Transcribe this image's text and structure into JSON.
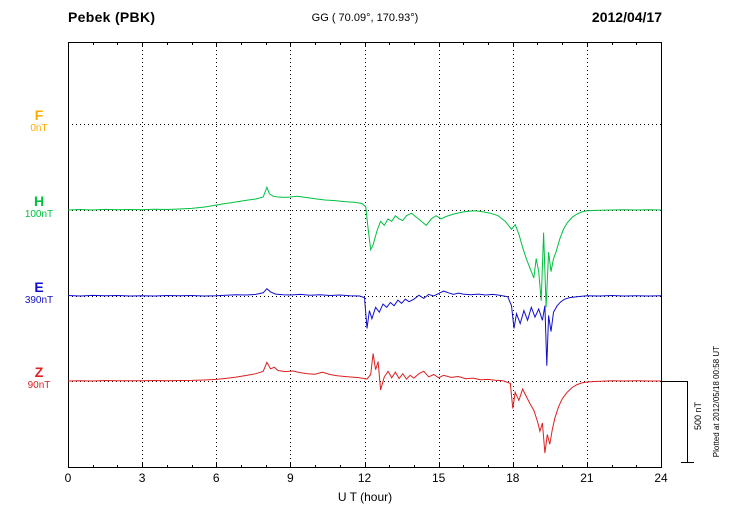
{
  "header": {
    "station": "Pebek (PBK)",
    "coords": "GG ( 70.09°, 170.93°)",
    "date": "2012/04/17"
  },
  "x_axis": {
    "label": "U T (hour)"
  },
  "scale_bar": {
    "label": "500 nT"
  },
  "plotted_note": "Plotted at 2012/05/18 00:58 UT",
  "chart_data": {
    "type": "line",
    "title": "Pebek (PBK) magnetogram",
    "xlabel": "U T (hour)",
    "x_range": [
      0,
      24
    ],
    "x_ticks": [
      0,
      3,
      6,
      9,
      12,
      15,
      18,
      21,
      24
    ],
    "y_unit": "nT",
    "scale_bar_nT": 500,
    "grid": "dotted",
    "series": [
      {
        "name": "F",
        "baseline_label": "0nT",
        "color": "#FFAA00",
        "points": []
      },
      {
        "name": "H",
        "baseline_label": "100nT",
        "color": "#00C040",
        "points": [
          [
            0,
            0
          ],
          [
            0.5,
            3
          ],
          [
            1,
            0
          ],
          [
            1.5,
            4
          ],
          [
            2,
            1
          ],
          [
            2.5,
            3
          ],
          [
            3,
            2
          ],
          [
            3.5,
            5
          ],
          [
            4,
            3
          ],
          [
            4.5,
            6
          ],
          [
            5,
            10
          ],
          [
            5.5,
            18
          ],
          [
            6,
            30
          ],
          [
            6.3,
            38
          ],
          [
            6.6,
            45
          ],
          [
            7,
            55
          ],
          [
            7.3,
            62
          ],
          [
            7.6,
            68
          ],
          [
            7.9,
            80
          ],
          [
            8.05,
            140
          ],
          [
            8.15,
            100
          ],
          [
            8.3,
            85
          ],
          [
            8.5,
            80
          ],
          [
            8.8,
            78
          ],
          [
            9,
            80
          ],
          [
            9.3,
            85
          ],
          [
            9.6,
            78
          ],
          [
            10,
            70
          ],
          [
            10.4,
            62
          ],
          [
            10.8,
            58
          ],
          [
            11.2,
            52
          ],
          [
            11.6,
            48
          ],
          [
            11.9,
            40
          ],
          [
            12.05,
            20
          ],
          [
            12.15,
            -120
          ],
          [
            12.25,
            -245
          ],
          [
            12.35,
            -215
          ],
          [
            12.5,
            -130
          ],
          [
            12.65,
            -70
          ],
          [
            12.8,
            -95
          ],
          [
            12.95,
            -55
          ],
          [
            13.1,
            -70
          ],
          [
            13.25,
            -35
          ],
          [
            13.4,
            -55
          ],
          [
            13.55,
            -65
          ],
          [
            13.7,
            -35
          ],
          [
            13.9,
            -20
          ],
          [
            14.1,
            -45
          ],
          [
            14.3,
            -70
          ],
          [
            14.5,
            -95
          ],
          [
            14.7,
            -55
          ],
          [
            14.9,
            -35
          ],
          [
            15.1,
            -55
          ],
          [
            15.3,
            -40
          ],
          [
            15.6,
            -25
          ],
          [
            15.9,
            -15
          ],
          [
            16.2,
            -8
          ],
          [
            16.5,
            -5
          ],
          [
            16.8,
            -12
          ],
          [
            17.1,
            -20
          ],
          [
            17.4,
            -35
          ],
          [
            17.7,
            -70
          ],
          [
            17.95,
            -120
          ],
          [
            18.1,
            -90
          ],
          [
            18.25,
            -150
          ],
          [
            18.4,
            -230
          ],
          [
            18.55,
            -300
          ],
          [
            18.7,
            -360
          ],
          [
            18.85,
            -420
          ],
          [
            18.95,
            -300
          ],
          [
            19.05,
            -380
          ],
          [
            19.15,
            -560
          ],
          [
            19.25,
            -140
          ],
          [
            19.35,
            -600
          ],
          [
            19.45,
            -260
          ],
          [
            19.55,
            -380
          ],
          [
            19.65,
            -300
          ],
          [
            19.75,
            -260
          ],
          [
            19.9,
            -180
          ],
          [
            20.05,
            -120
          ],
          [
            20.2,
            -80
          ],
          [
            20.4,
            -45
          ],
          [
            20.6,
            -25
          ],
          [
            20.8,
            -12
          ],
          [
            21,
            -5
          ],
          [
            21.5,
            -2
          ],
          [
            22,
            0
          ],
          [
            22.5,
            2
          ],
          [
            23,
            0
          ],
          [
            23.5,
            2
          ],
          [
            24,
            0
          ]
        ]
      },
      {
        "name": "E",
        "baseline_label": "390nT",
        "color": "#1010CC",
        "points": [
          [
            0,
            3
          ],
          [
            0.5,
            0
          ],
          [
            1,
            4
          ],
          [
            1.5,
            1
          ],
          [
            2,
            3
          ],
          [
            2.5,
            0
          ],
          [
            3,
            2
          ],
          [
            3.5,
            0
          ],
          [
            4,
            3
          ],
          [
            4.5,
            1
          ],
          [
            5,
            3
          ],
          [
            5.5,
            0
          ],
          [
            6,
            2
          ],
          [
            6.4,
            5
          ],
          [
            6.8,
            8
          ],
          [
            7.2,
            6
          ],
          [
            7.6,
            10
          ],
          [
            7.9,
            20
          ],
          [
            8.05,
            45
          ],
          [
            8.2,
            25
          ],
          [
            8.4,
            12
          ],
          [
            8.7,
            8
          ],
          [
            9,
            6
          ],
          [
            9.4,
            10
          ],
          [
            9.8,
            5
          ],
          [
            10.2,
            8
          ],
          [
            10.6,
            3
          ],
          [
            11,
            6
          ],
          [
            11.4,
            2
          ],
          [
            11.8,
            0
          ],
          [
            12,
            -10
          ],
          [
            12.1,
            -200
          ],
          [
            12.2,
            -90
          ],
          [
            12.3,
            -140
          ],
          [
            12.45,
            -70
          ],
          [
            12.6,
            -100
          ],
          [
            12.75,
            -50
          ],
          [
            12.9,
            -70
          ],
          [
            13.05,
            -40
          ],
          [
            13.2,
            -60
          ],
          [
            13.35,
            -25
          ],
          [
            13.5,
            -45
          ],
          [
            13.65,
            -20
          ],
          [
            13.8,
            -35
          ],
          [
            14,
            -20
          ],
          [
            14.2,
            5
          ],
          [
            14.4,
            -15
          ],
          [
            14.6,
            10
          ],
          [
            14.8,
            0
          ],
          [
            15,
            15
          ],
          [
            15.2,
            30
          ],
          [
            15.4,
            20
          ],
          [
            15.6,
            10
          ],
          [
            15.8,
            18
          ],
          [
            16,
            12
          ],
          [
            16.3,
            8
          ],
          [
            16.6,
            12
          ],
          [
            16.9,
            6
          ],
          [
            17.2,
            10
          ],
          [
            17.5,
            4
          ],
          [
            17.8,
            -5
          ],
          [
            17.95,
            -60
          ],
          [
            18.05,
            -200
          ],
          [
            18.15,
            -110
          ],
          [
            18.3,
            -170
          ],
          [
            18.45,
            -90
          ],
          [
            18.6,
            -150
          ],
          [
            18.75,
            -70
          ],
          [
            18.9,
            -130
          ],
          [
            19.05,
            -80
          ],
          [
            19.2,
            -150
          ],
          [
            19.3,
            -60
          ],
          [
            19.38,
            -430
          ],
          [
            19.45,
            -120
          ],
          [
            19.55,
            -220
          ],
          [
            19.65,
            -100
          ],
          [
            19.8,
            -60
          ],
          [
            19.95,
            -35
          ],
          [
            20.1,
            -20
          ],
          [
            20.3,
            -10
          ],
          [
            20.6,
            -5
          ],
          [
            21,
            2
          ],
          [
            21.5,
            0
          ],
          [
            22,
            3
          ],
          [
            22.5,
            0
          ],
          [
            23,
            2
          ],
          [
            23.5,
            0
          ],
          [
            24,
            2
          ]
        ]
      },
      {
        "name": "Z",
        "baseline_label": "90nT",
        "color": "#DD2020",
        "points": [
          [
            0,
            0
          ],
          [
            0.5,
            2
          ],
          [
            1,
            0
          ],
          [
            1.5,
            3
          ],
          [
            2,
            1
          ],
          [
            2.5,
            2
          ],
          [
            3,
            1
          ],
          [
            3.5,
            3
          ],
          [
            4,
            2
          ],
          [
            4.5,
            3
          ],
          [
            5,
            4
          ],
          [
            5.5,
            6
          ],
          [
            6,
            10
          ],
          [
            6.4,
            16
          ],
          [
            6.8,
            24
          ],
          [
            7.2,
            34
          ],
          [
            7.6,
            45
          ],
          [
            7.9,
            60
          ],
          [
            8.05,
            115
          ],
          [
            8.2,
            75
          ],
          [
            8.35,
            85
          ],
          [
            8.5,
            65
          ],
          [
            8.8,
            58
          ],
          [
            9.1,
            62
          ],
          [
            9.4,
            52
          ],
          [
            9.7,
            45
          ],
          [
            10,
            42
          ],
          [
            10.3,
            55
          ],
          [
            10.6,
            40
          ],
          [
            10.9,
            32
          ],
          [
            11.2,
            28
          ],
          [
            11.5,
            24
          ],
          [
            11.8,
            20
          ],
          [
            12.1,
            12
          ],
          [
            12.25,
            40
          ],
          [
            12.35,
            170
          ],
          [
            12.45,
            70
          ],
          [
            12.55,
            120
          ],
          [
            12.65,
            -55
          ],
          [
            12.8,
            25
          ],
          [
            12.95,
            60
          ],
          [
            13.1,
            20
          ],
          [
            13.25,
            55
          ],
          [
            13.4,
            15
          ],
          [
            13.55,
            45
          ],
          [
            13.7,
            12
          ],
          [
            13.85,
            35
          ],
          [
            14,
            18
          ],
          [
            14.2,
            45
          ],
          [
            14.4,
            60
          ],
          [
            14.6,
            25
          ],
          [
            14.8,
            40
          ],
          [
            15,
            20
          ],
          [
            15.2,
            35
          ],
          [
            15.5,
            22
          ],
          [
            15.8,
            28
          ],
          [
            16.1,
            14
          ],
          [
            16.4,
            18
          ],
          [
            16.7,
            8
          ],
          [
            17,
            10
          ],
          [
            17.3,
            5
          ],
          [
            17.6,
            2
          ],
          [
            17.9,
            -15
          ],
          [
            18,
            -170
          ],
          [
            18.1,
            -70
          ],
          [
            18.25,
            -120
          ],
          [
            18.4,
            -50
          ],
          [
            18.55,
            -95
          ],
          [
            18.7,
            -140
          ],
          [
            18.85,
            -180
          ],
          [
            19,
            -250
          ],
          [
            19.1,
            -310
          ],
          [
            19.2,
            -260
          ],
          [
            19.3,
            -445
          ],
          [
            19.4,
            -330
          ],
          [
            19.5,
            -390
          ],
          [
            19.6,
            -300
          ],
          [
            19.7,
            -230
          ],
          [
            19.85,
            -160
          ],
          [
            20,
            -110
          ],
          [
            20.2,
            -70
          ],
          [
            20.4,
            -40
          ],
          [
            20.6,
            -22
          ],
          [
            20.8,
            -12
          ],
          [
            21,
            -6
          ],
          [
            21.3,
            -3
          ],
          [
            21.6,
            -1
          ],
          [
            22,
            1
          ],
          [
            22.5,
            0
          ],
          [
            23,
            2
          ],
          [
            23.5,
            0
          ],
          [
            24,
            0
          ]
        ]
      }
    ]
  }
}
